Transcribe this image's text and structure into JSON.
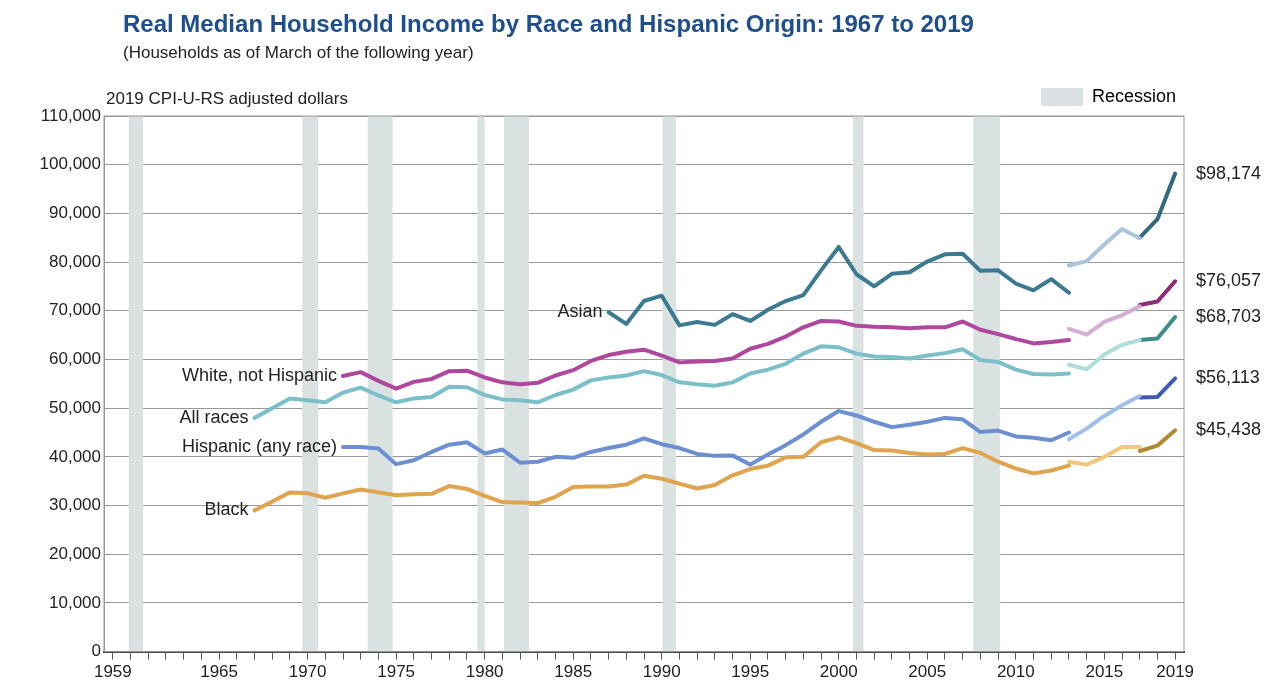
{
  "chart_data": {
    "type": "line",
    "title": "Real Median Household Income by Race and Hispanic Origin: 1967 to 2019",
    "subtitle": "(Households as of March of the following year)",
    "ylabel": "2019 CPI-U-RS adjusted dollars",
    "xlim": [
      1958.5,
      2019.5
    ],
    "ylim": [
      0,
      110000
    ],
    "xticks": [
      1959,
      {
        "value": 1960,
        "label": null
      },
      {
        "value": 1961,
        "label": null
      },
      {
        "value": 1962,
        "label": null
      },
      {
        "value": 1963,
        "label": null
      },
      {
        "value": 1964,
        "label": null
      },
      1965,
      {
        "value": 1966,
        "label": null
      },
      {
        "value": 1967,
        "label": null
      },
      {
        "value": 1968,
        "label": null
      },
      {
        "value": 1969,
        "label": null
      },
      1970,
      {
        "value": 1971,
        "label": null
      },
      {
        "value": 1972,
        "label": null
      },
      {
        "value": 1973,
        "label": null
      },
      {
        "value": 1974,
        "label": null
      },
      1975,
      {
        "value": 1976,
        "label": null
      },
      {
        "value": 1977,
        "label": null
      },
      {
        "value": 1978,
        "label": null
      },
      {
        "value": 1979,
        "label": null
      },
      1980,
      {
        "value": 1981,
        "label": null
      },
      {
        "value": 1982,
        "label": null
      },
      {
        "value": 1983,
        "label": null
      },
      {
        "value": 1984,
        "label": null
      },
      1985,
      {
        "value": 1986,
        "label": null
      },
      {
        "value": 1987,
        "label": null
      },
      {
        "value": 1988,
        "label": null
      },
      {
        "value": 1989,
        "label": null
      },
      1990,
      {
        "value": 1991,
        "label": null
      },
      {
        "value": 1992,
        "label": null
      },
      {
        "value": 1993,
        "label": null
      },
      {
        "value": 1994,
        "label": null
      },
      1995,
      {
        "value": 1996,
        "label": null
      },
      {
        "value": 1997,
        "label": null
      },
      {
        "value": 1998,
        "label": null
      },
      {
        "value": 1999,
        "label": null
      },
      2000,
      {
        "value": 2001,
        "label": null
      },
      {
        "value": 2002,
        "label": null
      },
      {
        "value": 2003,
        "label": null
      },
      {
        "value": 2004,
        "label": null
      },
      2005,
      {
        "value": 2006,
        "label": null
      },
      {
        "value": 2007,
        "label": null
      },
      {
        "value": 2008,
        "label": null
      },
      {
        "value": 2009,
        "label": null
      },
      2010,
      {
        "value": 2011,
        "label": null
      },
      {
        "value": 2012,
        "label": null
      },
      {
        "value": 2013,
        "label": null
      },
      {
        "value": 2014,
        "label": null
      },
      2015,
      {
        "value": 2016,
        "label": null
      },
      {
        "value": 2017,
        "label": null
      },
      {
        "value": 2018,
        "label": null
      },
      2019
    ],
    "yticks": [
      0,
      {
        "value": 10000,
        "label": "10,000"
      },
      {
        "value": 20000,
        "label": "20,000"
      },
      {
        "value": 30000,
        "label": "30,000"
      },
      {
        "value": 40000,
        "label": "40,000"
      },
      {
        "value": 50000,
        "label": "50,000"
      },
      {
        "value": 60000,
        "label": "60,000"
      },
      {
        "value": 70000,
        "label": "70,000"
      },
      {
        "value": 80000,
        "label": "80,000"
      },
      {
        "value": 90000,
        "label": "90,000"
      },
      {
        "value": 100000,
        "label": "100,000"
      },
      {
        "value": 110000,
        "label": "110,000"
      }
    ],
    "grid": "y",
    "legend": "top right",
    "marker": "none",
    "line_style": "solid",
    "bands": [
      {
        "axis": "x",
        "from": 1959.9,
        "to": 1960.7,
        "label": "Recession",
        "color": "#d9e2e1"
      },
      {
        "axis": "x",
        "from": 1969.7,
        "to": 1970.6,
        "color": "#d9e2e1"
      },
      {
        "axis": "x",
        "from": 1973.4,
        "to": 1974.8,
        "color": "#d9e2e1"
      },
      {
        "axis": "x",
        "from": 1979.6,
        "to": 1980.0,
        "color": "#d9e2e1"
      },
      {
        "axis": "x",
        "from": 1981.1,
        "to": 1982.5,
        "color": "#d9e2e1"
      },
      {
        "axis": "x",
        "from": 1990.05,
        "to": 1990.8,
        "color": "#d9e2e1"
      },
      {
        "axis": "x",
        "from": 2000.8,
        "to": 2001.4,
        "color": "#d9e2e1"
      },
      {
        "axis": "x",
        "from": 2007.6,
        "to": 2009.1,
        "color": "#d9e2e1"
      }
    ],
    "series": [
      {
        "name": "Asian",
        "color": "#3d7a91",
        "x": [
          1987,
          1988,
          1989,
          1990,
          1991,
          1992,
          1993,
          1994,
          1995,
          1996,
          1997,
          1998,
          1999,
          2000,
          2001,
          2002,
          2003,
          2004,
          2005,
          2006,
          2007,
          2008,
          2009,
          2010,
          2011,
          2012,
          2013
        ],
        "values": [
          69700,
          67300,
          72000,
          73100,
          67000,
          67700,
          67100,
          69300,
          67900,
          70200,
          72000,
          73200,
          78300,
          83100,
          77500,
          75000,
          77600,
          77900,
          80100,
          81600,
          81700,
          78200,
          78300,
          75600,
          74200,
          76500,
          73700
        ]
      },
      {
        "color": "#a9c4dc",
        "x": [
          2013,
          2014,
          2015,
          2016,
          2017
        ],
        "values": [
          79300,
          80200,
          83600,
          86800,
          84900
        ]
      },
      {
        "color": "#2f6a80",
        "x": [
          2017,
          2018,
          2019
        ],
        "values": [
          85000,
          88800,
          98174
        ],
        "value_labels": [
          null,
          null,
          "$98,174"
        ]
      },
      {
        "name": "White, not Hispanic",
        "color": "#b0479f",
        "x": [
          1972,
          1973,
          1974,
          1975,
          1976,
          1977,
          1978,
          1979,
          1980,
          1981,
          1982,
          1983,
          1984,
          1985,
          1986,
          1987,
          1988,
          1989,
          1990,
          1991,
          1992,
          1993,
          1994,
          1995,
          1996,
          1997,
          1998,
          1999,
          2000,
          2001,
          2002,
          2003,
          2004,
          2005,
          2006,
          2007,
          2008,
          2009,
          2010,
          2011,
          2012,
          2013
        ],
        "values": [
          56600,
          57400,
          55600,
          54000,
          55400,
          56000,
          57600,
          57700,
          56300,
          55300,
          54900,
          55200,
          56700,
          57800,
          59700,
          60900,
          61600,
          62000,
          60800,
          59400,
          59600,
          59700,
          60200,
          62200,
          63200,
          64700,
          66600,
          67900,
          67800,
          66900,
          66700,
          66600,
          66400,
          66600,
          66600,
          67800,
          66100,
          65200,
          64200,
          63300,
          63600,
          64000
        ]
      },
      {
        "color": "#d3afd3",
        "x": [
          2013,
          2014,
          2015,
          2016,
          2017
        ],
        "values": [
          66300,
          65100,
          67700,
          69100,
          70900
        ]
      },
      {
        "color": "#8e2a78",
        "x": [
          2017,
          2018,
          2019
        ],
        "values": [
          71200,
          71900,
          76057
        ],
        "value_labels": [
          null,
          null,
          "$76,057"
        ]
      },
      {
        "name": "All races",
        "color": "#7bbfc8",
        "x": [
          1967,
          1968,
          1969,
          1970,
          1971,
          1972,
          1973,
          1974,
          1975,
          1976,
          1977,
          1978,
          1979,
          1980,
          1981,
          1982,
          1983,
          1984,
          1985,
          1986,
          1987,
          1988,
          1989,
          1990,
          1991,
          1992,
          1993,
          1994,
          1995,
          1996,
          1997,
          1998,
          1999,
          2000,
          2001,
          2002,
          2003,
          2004,
          2005,
          2006,
          2007,
          2008,
          2009,
          2010,
          2011,
          2012,
          2013
        ],
        "values": [
          48000,
          50000,
          52000,
          51600,
          51200,
          53200,
          54200,
          52600,
          51200,
          52000,
          52300,
          54400,
          54300,
          52700,
          51800,
          51600,
          51200,
          52700,
          53800,
          55700,
          56300,
          56700,
          57600,
          56800,
          55300,
          54900,
          54600,
          55300,
          57100,
          57900,
          59100,
          61200,
          62700,
          62500,
          61200,
          60600,
          60500,
          60200,
          60800,
          61300,
          62100,
          59900,
          59500,
          57900,
          57000,
          56900,
          57100
        ]
      },
      {
        "color": "#b0dcdc",
        "x": [
          2013,
          2014,
          2015,
          2016,
          2017
        ],
        "values": [
          58900,
          58000,
          61000,
          63000,
          64000
        ]
      },
      {
        "color": "#3f8c8a",
        "x": [
          2017,
          2018,
          2019
        ],
        "values": [
          64000,
          64300,
          68703
        ],
        "value_labels": [
          null,
          null,
          "$68,703"
        ]
      },
      {
        "name": "Hispanic (any race)",
        "color": "#6b8fd0",
        "x": [
          1972,
          1973,
          1974,
          1975,
          1976,
          1977,
          1978,
          1979,
          1980,
          1981,
          1982,
          1983,
          1984,
          1985,
          1986,
          1987,
          1988,
          1989,
          1990,
          1991,
          1992,
          1993,
          1994,
          1995,
          1996,
          1997,
          1998,
          1999,
          2000,
          2001,
          2002,
          2003,
          2004,
          2005,
          2006,
          2007,
          2008,
          2009,
          2010,
          2011,
          2012,
          2013
        ],
        "values": [
          42000,
          42000,
          41700,
          38500,
          39300,
          41000,
          42500,
          43000,
          40700,
          41500,
          38800,
          39000,
          40000,
          39800,
          41000,
          41800,
          42500,
          43800,
          42600,
          41800,
          40600,
          40200,
          40300,
          38400,
          40500,
          42400,
          44600,
          47200,
          49400,
          48500,
          47200,
          46100,
          46600,
          47200,
          48000,
          47700,
          45100,
          45400,
          44200,
          43900,
          43400,
          45000
        ]
      },
      {
        "color": "#9fc0e8",
        "x": [
          2013,
          2014,
          2015,
          2016,
          2017
        ],
        "values": [
          43600,
          45800,
          48400,
          50600,
          52500
        ]
      },
      {
        "color": "#3e5bb0",
        "x": [
          2017,
          2018,
          2019
        ],
        "values": [
          52200,
          52300,
          56113
        ],
        "value_labels": [
          null,
          null,
          "$56,113"
        ]
      },
      {
        "name": "Black",
        "color": "#e0a44e",
        "x": [
          1967,
          1968,
          1969,
          1970,
          1971,
          1972,
          1973,
          1974,
          1975,
          1976,
          1977,
          1978,
          1979,
          1980,
          1981,
          1982,
          1983,
          1984,
          1985,
          1986,
          1987,
          1988,
          1989,
          1990,
          1991,
          1992,
          1993,
          1994,
          1995,
          1996,
          1997,
          1998,
          1999,
          2000,
          2001,
          2002,
          2003,
          2004,
          2005,
          2006,
          2007,
          2008,
          2009,
          2010,
          2011,
          2012,
          2013
        ],
        "values": [
          29000,
          30800,
          32700,
          32500,
          31600,
          32500,
          33300,
          32700,
          32100,
          32300,
          32400,
          34000,
          33400,
          32000,
          30700,
          30600,
          30500,
          31800,
          33800,
          33900,
          33900,
          34300,
          36100,
          35500,
          34500,
          33500,
          34200,
          36200,
          37500,
          38200,
          39900,
          40000,
          43000,
          44000,
          42800,
          41400,
          41300,
          40800,
          40500,
          40600,
          41800,
          40800,
          39000,
          37600,
          36600,
          37200,
          38200
        ]
      },
      {
        "color": "#f2c77e",
        "x": [
          2013,
          2014,
          2015,
          2016,
          2017
        ],
        "values": [
          39000,
          38400,
          40000,
          42000,
          42000
        ]
      },
      {
        "color": "#b08a35",
        "x": [
          2017,
          2018,
          2019
        ],
        "values": [
          41200,
          42300,
          45438
        ],
        "value_labels": [
          null,
          null,
          "$45,438"
        ]
      }
    ]
  }
}
